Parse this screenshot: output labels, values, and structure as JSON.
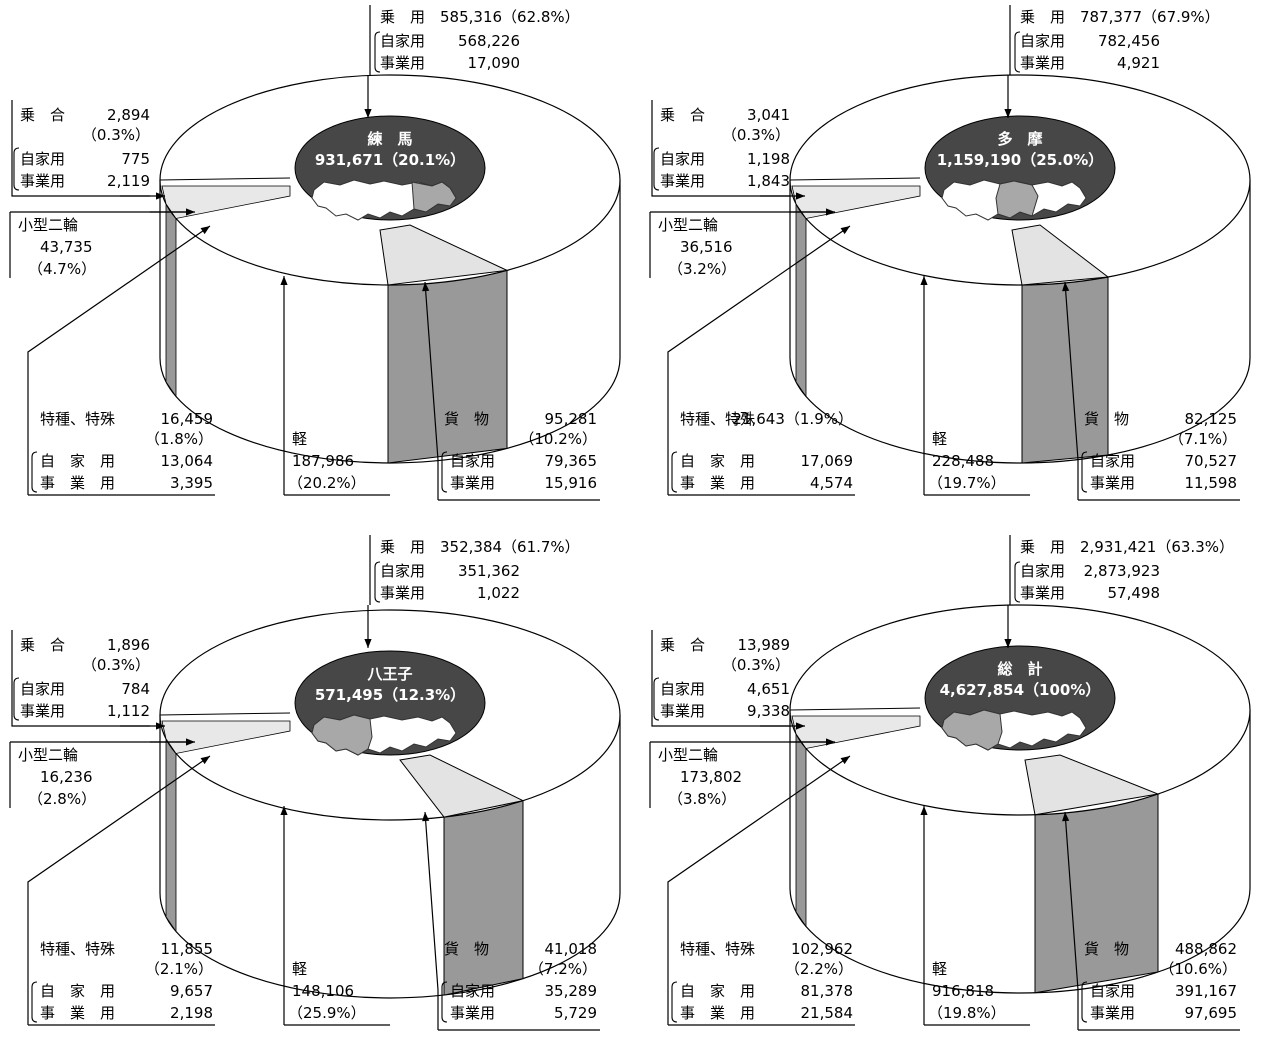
{
  "chart_data": [
    {
      "type": "pie",
      "center_label": {
        "name": "練　馬",
        "value": "931,671（20.1%）"
      },
      "slices": [
        {
          "key": "joyo",
          "name": "乗　用",
          "total": "585,316（62.8%）",
          "value": 585316,
          "jika_label": "自家用",
          "jika": "568,226",
          "jigyo_label": "事業用",
          "jigyo": "17,090"
        },
        {
          "key": "noriai",
          "name": "乗　合",
          "total": "2,894",
          "pct": "（0.3%）",
          "value": 2894,
          "jika_label": "自家用",
          "jika": "775",
          "jigyo_label": "事業用",
          "jigyo": "2,119"
        },
        {
          "key": "nirin",
          "name": "小型二輪",
          "total": "43,735",
          "pct": "（4.7%）",
          "value": 43735
        },
        {
          "key": "tokushu",
          "name": "特種、特殊",
          "total": "16,459",
          "pct": "（1.8%）",
          "value": 16459,
          "jika_label": "自　家　用",
          "jika": "13,064",
          "jigyo_label": "事　業　用",
          "jigyo": "3,395"
        },
        {
          "key": "kei",
          "name": "軽",
          "total": "187,986",
          "pct": "（20.2%）",
          "value": 187986
        },
        {
          "key": "kamotsu",
          "name": "貨　物",
          "total": "95,281",
          "pct": "（10.2%）",
          "value": 95281,
          "jika_label": "自家用",
          "jika": "79,365",
          "jigyo_label": "事業用",
          "jigyo": "15,916"
        }
      ]
    },
    {
      "type": "pie",
      "center_label": {
        "name": "多　摩",
        "value": "1,159,190（25.0%）"
      },
      "slices": [
        {
          "key": "joyo",
          "name": "乗　用",
          "total": "787,377（67.9%）",
          "value": 787377,
          "jika_label": "自家用",
          "jika": "782,456",
          "jigyo_label": "事業用",
          "jigyo": "4,921"
        },
        {
          "key": "noriai",
          "name": "乗　合",
          "total": "3,041",
          "pct": "（0.3%）",
          "value": 3041,
          "jika_label": "自家用",
          "jika": "1,198",
          "jigyo_label": "事業用",
          "jigyo": "1,843"
        },
        {
          "key": "nirin",
          "name": "小型二輪",
          "total": "36,516",
          "pct": "（3.2%）",
          "value": 36516
        },
        {
          "key": "tokushu",
          "name": "特種、特殊",
          "total": "21,643（1.9%）",
          "value": 21643,
          "jika_label": "自　家　用",
          "jika": "17,069",
          "jigyo_label": "事　業　用",
          "jigyo": "4,574"
        },
        {
          "key": "kei",
          "name": "軽",
          "total": "228,488",
          "pct": "（19.7%）",
          "value": 228488
        },
        {
          "key": "kamotsu",
          "name": "貨　物",
          "total": "82,125",
          "pct": "（7.1%）",
          "value": 82125,
          "jika_label": "自家用",
          "jika": "70,527",
          "jigyo_label": "事業用",
          "jigyo": "11,598"
        }
      ]
    },
    {
      "type": "pie",
      "center_label": {
        "name": "八王子",
        "value": "571,495（12.3%）"
      },
      "slices": [
        {
          "key": "joyo",
          "name": "乗　用",
          "total": "352,384（61.7%）",
          "value": 352384,
          "jika_label": "自家用",
          "jika": "351,362",
          "jigyo_label": "事業用",
          "jigyo": "1,022"
        },
        {
          "key": "noriai",
          "name": "乗　合",
          "total": "1,896",
          "pct": "（0.3%）",
          "value": 1896,
          "jika_label": "自家用",
          "jika": "784",
          "jigyo_label": "事業用",
          "jigyo": "1,112"
        },
        {
          "key": "nirin",
          "name": "小型二輪",
          "total": "16,236",
          "pct": "（2.8%）",
          "value": 16236
        },
        {
          "key": "tokushu",
          "name": "特種、特殊",
          "total": "11,855",
          "pct": "（2.1%）",
          "value": 11855,
          "jika_label": "自　家　用",
          "jika": "9,657",
          "jigyo_label": "事　業　用",
          "jigyo": "2,198"
        },
        {
          "key": "kei",
          "name": "軽",
          "total": "148,106",
          "pct": "（25.9%）",
          "value": 148106
        },
        {
          "key": "kamotsu",
          "name": "貨　物",
          "total": "41,018",
          "pct": "（7.2%）",
          "value": 41018,
          "jika_label": "自家用",
          "jika": "35,289",
          "jigyo_label": "事業用",
          "jigyo": "5,729"
        }
      ]
    },
    {
      "type": "pie",
      "center_label": {
        "name": "総　計",
        "value": "4,627,854（100%）"
      },
      "slices": [
        {
          "key": "joyo",
          "name": "乗　用",
          "total": "2,931,421（63.3%）",
          "value": 2931421,
          "jika_label": "自家用",
          "jika": "2,873,923",
          "jigyo_label": "事業用",
          "jigyo": "57,498"
        },
        {
          "key": "noriai",
          "name": "乗　合",
          "total": "13,989",
          "pct": "（0.3%）",
          "value": 13989,
          "jika_label": "自家用",
          "jika": "4,651",
          "jigyo_label": "事業用",
          "jigyo": "9,338"
        },
        {
          "key": "nirin",
          "name": "小型二輪",
          "total": "173,802",
          "pct": "（3.8%）",
          "value": 173802
        },
        {
          "key": "tokushu",
          "name": "特種、特殊",
          "total": "102,962",
          "pct": "（2.2%）",
          "value": 102962,
          "jika_label": "自　家　用",
          "jika": "81,378",
          "jigyo_label": "事　業　用",
          "jigyo": "21,584"
        },
        {
          "key": "kei",
          "name": "軽",
          "total": "916,818",
          "pct": "（19.8%）",
          "value": 916818
        },
        {
          "key": "kamotsu",
          "name": "貨　物",
          "total": "488,862",
          "pct": "（10.6%）",
          "value": 488862,
          "jika_label": "自家用",
          "jika": "391,167",
          "jigyo_label": "事業用",
          "jigyo": "97,695"
        }
      ]
    }
  ],
  "colors": {
    "center_disc": "#474747",
    "kamotsu_side": "#999999",
    "kamotsu_top": "#e3e3e3",
    "thin_side": "#999999",
    "thin_top": "#e8e8e8",
    "map_land": "#ffffff",
    "map_highlight": "#a8a8a8"
  }
}
